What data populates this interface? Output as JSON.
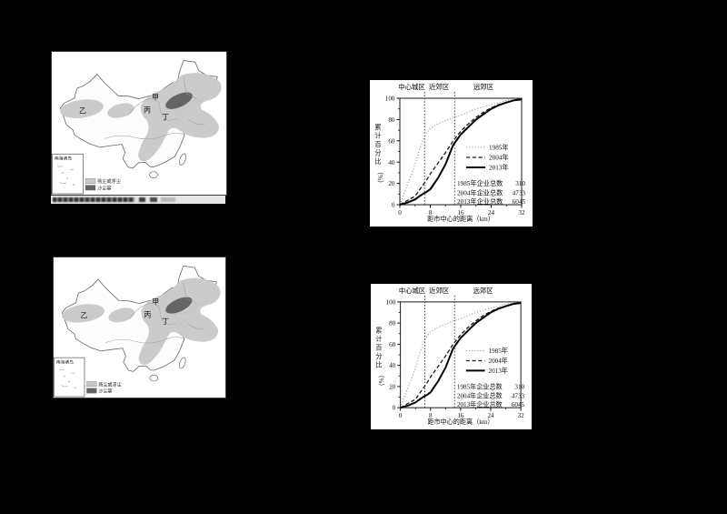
{
  "page": {
    "background": "#000000"
  },
  "maps": [
    {
      "panel": "top-left",
      "marker_labels": [
        "甲",
        "乙",
        "丙",
        "丁"
      ],
      "inset_label": "南海诸岛",
      "legend": [
        {
          "color": "#c8c8c8",
          "label": "扬尘或浮尘"
        },
        {
          "color": "#646464",
          "label": "沙尘暴"
        }
      ],
      "caption_illegible": true
    },
    {
      "panel": "bottom-left",
      "marker_labels": [
        "甲",
        "乙",
        "丙",
        "丁"
      ],
      "inset_label": "南海诸岛",
      "legend": [
        {
          "color": "#c8c8c8",
          "label": "扬尘或浮尘"
        },
        {
          "color": "#646464",
          "label": "沙尘暴"
        }
      ],
      "caption_illegible": false
    }
  ],
  "chart_data": [
    {
      "type": "line",
      "panel": "top-right",
      "zones": [
        "中心城区",
        "近郊区",
        "远郊区"
      ],
      "zone_boundaries_km": [
        6.5,
        14.4
      ],
      "xlabel": "距市中心的距离（km）",
      "ylabel": "累计百分比",
      "yunit": "（%）",
      "xlim": [
        0,
        32
      ],
      "ylim": [
        0,
        100
      ],
      "xticks": [
        0,
        8,
        16,
        24,
        32
      ],
      "xticks_minor": [
        4,
        12,
        20,
        28
      ],
      "yticks": [
        0,
        20,
        40,
        60,
        80,
        100
      ],
      "yticks_minor": [
        10,
        30,
        50,
        70,
        90
      ],
      "grid": false,
      "legend_position": "middle-right",
      "x": [
        0,
        1,
        2,
        3,
        4,
        5,
        6,
        7,
        8,
        10,
        12,
        14,
        16,
        18,
        20,
        22,
        24,
        26,
        28,
        30,
        32
      ],
      "series": [
        {
          "name": "1985年",
          "style": "dotted",
          "values": [
            0,
            10,
            19,
            28,
            38,
            50,
            60,
            67,
            72,
            76,
            79,
            82,
            84,
            87,
            90,
            92,
            94,
            96,
            98,
            99,
            100
          ]
        },
        {
          "name": "2004年",
          "style": "dashed",
          "values": [
            0,
            2,
            4,
            6,
            8,
            13,
            18,
            23,
            29,
            39,
            49,
            60,
            69,
            76,
            82,
            87,
            91,
            94,
            96,
            98,
            100
          ]
        },
        {
          "name": "2013年",
          "style": "solid",
          "values": [
            0,
            1,
            2,
            3.5,
            5,
            7.5,
            10,
            12,
            14.5,
            25,
            38,
            56,
            66,
            73,
            80,
            85,
            90,
            93.5,
            96,
            98,
            99
          ]
        }
      ],
      "totals": [
        {
          "label": "1985年企业总数",
          "value": "310"
        },
        {
          "label": "2004年企业总数",
          "value": "4733"
        },
        {
          "label": "2013年企业总数",
          "value": "6045"
        }
      ]
    },
    {
      "type": "line",
      "panel": "bottom-right",
      "zones": [
        "中心城区",
        "近郊区",
        "远郊区"
      ],
      "zone_boundaries_km": [
        6.5,
        14.4
      ],
      "xlabel": "距市中心的距离（km）",
      "ylabel": "累计百分比",
      "yunit": "（%）",
      "xlim": [
        0,
        32
      ],
      "ylim": [
        0,
        100
      ],
      "xticks": [
        0,
        8,
        16,
        24,
        32
      ],
      "xticks_minor": [
        4,
        12,
        20,
        28
      ],
      "yticks": [
        0,
        20,
        40,
        60,
        80,
        100
      ],
      "yticks_minor": [
        10,
        30,
        50,
        70,
        90
      ],
      "grid": false,
      "legend_position": "middle-right",
      "x": [
        0,
        1,
        2,
        3,
        4,
        5,
        6,
        7,
        8,
        10,
        12,
        14,
        16,
        18,
        20,
        22,
        24,
        26,
        28,
        30,
        32
      ],
      "series": [
        {
          "name": "1985年",
          "style": "dotted",
          "values": [
            0,
            10,
            19,
            28,
            38,
            50,
            60,
            67,
            72,
            76,
            79,
            82,
            84,
            87,
            90,
            92,
            94,
            96,
            98,
            99,
            100
          ]
        },
        {
          "name": "2004年",
          "style": "dashed",
          "values": [
            0,
            2,
            4,
            6,
            8,
            13,
            18,
            23,
            29,
            39,
            49,
            60,
            69,
            76,
            82,
            87,
            91,
            94,
            96,
            98,
            100
          ]
        },
        {
          "name": "2013年",
          "style": "solid",
          "values": [
            0,
            1,
            2,
            3.5,
            5,
            7.5,
            10,
            12,
            14.5,
            25,
            38,
            56,
            66,
            73,
            80,
            85,
            90,
            93.5,
            96,
            98,
            99
          ]
        }
      ],
      "totals": [
        {
          "label": "1985年企业总数",
          "value": "310"
        },
        {
          "label": "2004年企业总数",
          "value": "4733"
        },
        {
          "label": "2013年企业总数",
          "value": "6045"
        }
      ]
    }
  ]
}
